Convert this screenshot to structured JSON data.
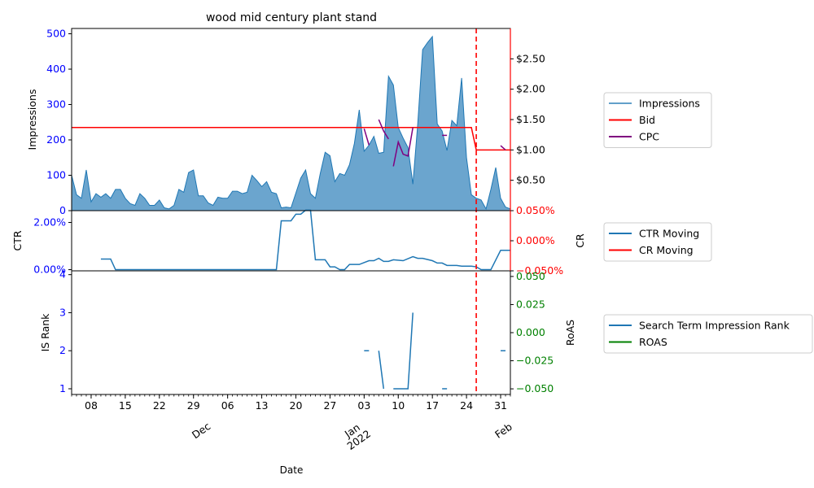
{
  "chart_data": {
    "type": "area",
    "title": "wood mid century plant stand",
    "xlabel": "Date",
    "x_tick_labels": [
      {
        "date": "2021-11-08",
        "label": "08"
      },
      {
        "date": "2021-11-15",
        "label": "15"
      },
      {
        "date": "2021-11-22",
        "label": "22"
      },
      {
        "date": "2021-11-29",
        "label": "29"
      },
      {
        "date": "2021-12-06",
        "label": "06"
      },
      {
        "date": "2021-12-13",
        "label": "13"
      },
      {
        "date": "2021-12-20",
        "label": "20"
      },
      {
        "date": "2021-12-27",
        "label": "27"
      },
      {
        "date": "2022-01-03",
        "label": "03"
      },
      {
        "date": "2022-01-10",
        "label": "10"
      },
      {
        "date": "2022-01-17",
        "label": "17"
      },
      {
        "date": "2022-01-24",
        "label": "24"
      },
      {
        "date": "2022-01-31",
        "label": "31"
      }
    ],
    "x_month_labels": [
      {
        "date": "2021-12-01",
        "label": "Dec"
      },
      {
        "date": "2022-01-01",
        "label": "Jan\n2022"
      },
      {
        "date": "2022-02-01",
        "label": "Feb"
      }
    ],
    "x_range": [
      "2021-11-04",
      "2022-02-02"
    ],
    "vline_date": "2022-01-26",
    "colors": {
      "impressions": "#1f77b4",
      "bid": "#ff0000",
      "cpc": "#800080",
      "ctr": "#1f77b4",
      "cr": "#ff0000",
      "is_rank": "#1f77b4",
      "roas": "#008000",
      "left_axis_tick": "#0000ff",
      "right_axis_top": "#ff0000",
      "right_axis_bottom": "#008000"
    },
    "panels": [
      {
        "id": "top",
        "ylabel": "Impressions",
        "ylim": [
          0,
          515
        ],
        "y_ticks": [
          0,
          100,
          200,
          300,
          400,
          500
        ],
        "y2lim": [
          0.0,
          3.0
        ],
        "y2_ticks": [
          {
            "value": 0.5,
            "label": "$0.50"
          },
          {
            "value": 1.0,
            "label": "$1.00"
          },
          {
            "value": 1.5,
            "label": "$1.50"
          },
          {
            "value": 2.0,
            "label": "$2.00"
          },
          {
            "value": 2.5,
            "label": "$2.50"
          }
        ],
        "series": [
          {
            "name": "Impressions",
            "kind": "area",
            "start": "2021-11-04",
            "values": [
              100,
              45,
              35,
              115,
              25,
              48,
              38,
              48,
              35,
              60,
              60,
              35,
              20,
              15,
              48,
              35,
              15,
              15,
              30,
              8,
              5,
              15,
              60,
              52,
              108,
              115,
              42,
              42,
              22,
              15,
              38,
              35,
              35,
              55,
              55,
              48,
              52,
              100,
              85,
              68,
              82,
              52,
              48,
              8,
              10,
              8,
              50,
              92,
              115,
              48,
              35,
              105,
              165,
              155,
              82,
              105,
              100,
              130,
              190,
              285,
              168,
              185,
              210,
              162,
              165,
              380,
              355,
              235,
              205,
              178,
              75,
              245,
              455,
              475,
              492,
              245,
              225,
              170,
              255,
              240,
              375,
              150,
              45,
              35,
              30,
              5,
              60,
              122,
              35,
              10,
              5
            ]
          },
          {
            "name": "Bid",
            "kind": "line",
            "axis": "right",
            "points": [
              [
                "2021-11-04",
                1.37
              ],
              [
                "2022-01-25",
                1.37
              ],
              [
                "2022-01-26",
                1.0
              ],
              [
                "2022-02-02",
                1.0
              ]
            ]
          },
          {
            "name": "CPC",
            "kind": "line",
            "axis": "right",
            "segments": [
              [
                [
                  "2022-01-03",
                  1.35
                ],
                [
                  "2022-01-04",
                  1.08
                ]
              ],
              [
                [
                  "2022-01-06",
                  1.5
                ],
                [
                  "2022-01-07",
                  1.31
                ],
                [
                  "2022-01-08",
                  1.18
                ]
              ],
              [
                [
                  "2022-01-09",
                  0.73
                ],
                [
                  "2022-01-10",
                  1.13
                ],
                [
                  "2022-01-11",
                  0.93
                ],
                [
                  "2022-01-12",
                  0.9
                ],
                [
                  "2022-01-13",
                  1.37
                ]
              ],
              [
                [
                  "2022-01-19",
                  1.24
                ],
                [
                  "2022-01-20",
                  1.24
                ]
              ],
              [
                [
                  "2022-01-31",
                  1.07
                ],
                [
                  "2022-02-01",
                  1.0
                ]
              ]
            ]
          }
        ],
        "legend": [
          "Impressions",
          "Bid",
          "CPC"
        ],
        "legend_placement": "right"
      },
      {
        "id": "middle",
        "ylabel": "CTR",
        "ylim": [
          -0.0005,
          0.025
        ],
        "y_ticks": [
          {
            "value": 0.0,
            "label": "0.00%"
          },
          {
            "value": 0.02,
            "label": "2.00%"
          }
        ],
        "y2label": "CR",
        "y2lim": [
          -0.0005,
          0.0005
        ],
        "y2_ticks": [
          {
            "value": -0.0005,
            "label": "−0.050%"
          },
          {
            "value": 0.0,
            "label": "0.000%"
          },
          {
            "value": 0.0005,
            "label": "0.050%"
          }
        ],
        "series": [
          {
            "name": "CTR Moving",
            "kind": "line",
            "points": [
              [
                "2021-11-10",
                0.0045
              ],
              [
                "2021-11-12",
                0.0045
              ],
              [
                "2021-11-13",
                0.0
              ],
              [
                "2021-12-16",
                0.0
              ],
              [
                "2021-12-17",
                0.0207
              ],
              [
                "2021-12-19",
                0.0207
              ],
              [
                "2021-12-20",
                0.0235
              ],
              [
                "2021-12-21",
                0.0235
              ],
              [
                "2021-12-22",
                0.0252
              ],
              [
                "2021-12-23",
                0.0252
              ],
              [
                "2021-12-24",
                0.0042
              ],
              [
                "2021-12-26",
                0.0042
              ],
              [
                "2021-12-27",
                0.0012
              ],
              [
                "2021-12-28",
                0.0012
              ],
              [
                "2021-12-29",
                0.0
              ],
              [
                "2021-12-30",
                0.0
              ],
              [
                "2021-12-31",
                0.0022
              ],
              [
                "2022-01-02",
                0.0022
              ],
              [
                "2022-01-04",
                0.0038
              ],
              [
                "2022-01-05",
                0.0038
              ],
              [
                "2022-01-06",
                0.0048
              ],
              [
                "2022-01-07",
                0.0035
              ],
              [
                "2022-01-08",
                0.0035
              ],
              [
                "2022-01-09",
                0.0042
              ],
              [
                "2022-01-11",
                0.0038
              ],
              [
                "2022-01-13",
                0.0055
              ],
              [
                "2022-01-14",
                0.0048
              ],
              [
                "2022-01-15",
                0.0048
              ],
              [
                "2022-01-17",
                0.0038
              ],
              [
                "2022-01-18",
                0.0028
              ],
              [
                "2022-01-19",
                0.0028
              ],
              [
                "2022-01-20",
                0.0018
              ],
              [
                "2022-01-22",
                0.0018
              ],
              [
                "2022-01-23",
                0.0015
              ],
              [
                "2022-01-25",
                0.0015
              ],
              [
                "2022-01-26",
                0.0012
              ],
              [
                "2022-01-27",
                0.0
              ],
              [
                "2022-01-29",
                0.0
              ],
              [
                "2022-01-31",
                0.0082
              ],
              [
                "2022-02-02",
                0.0082
              ]
            ]
          },
          {
            "name": "CR Moving",
            "kind": "line",
            "axis": "right",
            "points": []
          }
        ],
        "legend": [
          "CTR Moving",
          "CR Moving"
        ],
        "legend_placement": "right"
      },
      {
        "id": "bottom",
        "ylabel": "IS Rank",
        "ylim": [
          0.85,
          4.1
        ],
        "y_ticks": [
          1,
          2,
          3,
          4
        ],
        "y2label": "RoAS",
        "y2lim": [
          -0.055,
          0.055
        ],
        "y2_ticks": [
          {
            "value": -0.05,
            "label": "−0.050"
          },
          {
            "value": -0.025,
            "label": "−0.025"
          },
          {
            "value": 0.0,
            "label": "0.000"
          },
          {
            "value": 0.025,
            "label": "0.025"
          },
          {
            "value": 0.05,
            "label": "0.050"
          }
        ],
        "series": [
          {
            "name": "Search Term Impression Rank",
            "kind": "line",
            "segments": [
              [
                [
                  "2022-01-03",
                  2
                ],
                [
                  "2022-01-04",
                  2
                ]
              ],
              [
                [
                  "2022-01-06",
                  2
                ],
                [
                  "2022-01-07",
                  1
                ]
              ],
              [
                [
                  "2022-01-09",
                  1
                ],
                [
                  "2022-01-12",
                  1
                ],
                [
                  "2022-01-13",
                  3
                ]
              ],
              [
                [
                  "2022-01-19",
                  1
                ],
                [
                  "2022-01-20",
                  1
                ]
              ],
              [
                [
                  "2022-01-31",
                  2
                ],
                [
                  "2022-02-01",
                  2
                ]
              ]
            ]
          },
          {
            "name": "ROAS",
            "kind": "line",
            "axis": "right",
            "points": []
          }
        ],
        "legend": [
          "Search Term Impression Rank",
          "ROAS"
        ],
        "legend_placement": "right"
      }
    ]
  }
}
